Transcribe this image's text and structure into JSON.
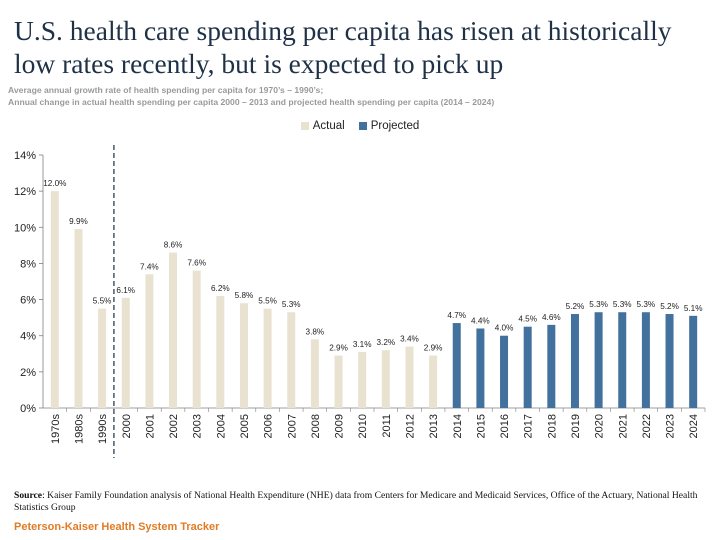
{
  "title": "U.S. health care spending per capita has risen at historically low rates recently, but is expected to pick up",
  "subtitle_line1": "Average annual growth rate of health spending per capita for 1970’s – 1990’s;",
  "subtitle_line2": "Annual change in actual health spending per capita 2000 – 2013 and projected health spending per capita (2014 – 2024)",
  "legend": {
    "actual": "Actual",
    "projected": "Projected"
  },
  "source": {
    "label": "Source",
    "text": ": Kaiser Family Foundation analysis of National Health Expenditure (NHE) data from Centers for Medicare and Medicaid Services, Office of the Actuary, National Health Statistics Group"
  },
  "brand": "Peterson-Kaiser Health System Tracker",
  "colors": {
    "actual": "#e9e2d0",
    "projected": "#41719c",
    "divider": "#1f3147",
    "title": "#1f3147",
    "brand": "#e07b26"
  },
  "chart_data": {
    "type": "bar",
    "categories": [
      "1970s",
      "1980s",
      "1990s",
      "2000",
      "2001",
      "2002",
      "2003",
      "2004",
      "2005",
      "2006",
      "2007",
      "2008",
      "2009",
      "2010",
      "2011",
      "2012",
      "2013",
      "2014",
      "2015",
      "2016",
      "2017",
      "2018",
      "2019",
      "2020",
      "2021",
      "2022",
      "2023",
      "2024"
    ],
    "series": [
      {
        "name": "Actual",
        "values": [
          12.0,
          9.9,
          5.5,
          6.1,
          7.4,
          8.6,
          7.6,
          6.2,
          5.8,
          5.5,
          5.3,
          3.8,
          2.9,
          3.1,
          3.2,
          3.4,
          2.9,
          null,
          null,
          null,
          null,
          null,
          null,
          null,
          null,
          null,
          null,
          null
        ]
      },
      {
        "name": "Projected",
        "values": [
          null,
          null,
          null,
          null,
          null,
          null,
          null,
          null,
          null,
          null,
          null,
          null,
          null,
          null,
          null,
          null,
          null,
          4.7,
          4.4,
          4.0,
          4.5,
          4.6,
          5.2,
          5.3,
          5.3,
          5.3,
          5.2,
          5.1
        ]
      }
    ],
    "data_labels": [
      "12.0%",
      "9.9%",
      "5.5%",
      "6.1%",
      "7.4%",
      "8.6%",
      "7.6%",
      "6.2%",
      "5.8%",
      "5.5%",
      "5.3%",
      "3.8%",
      "2.9%",
      "3.1%",
      "3.2%",
      "3.4%",
      "2.9%",
      "4.7%",
      "4.4%",
      "4.0%",
      "4.5%",
      "4.6%",
      "5.2%",
      "5.3%",
      "5.3%",
      "5.3%",
      "5.2%",
      "5.1%"
    ],
    "y_ticks": [
      "0%",
      "2%",
      "4%",
      "6%",
      "8%",
      "10%",
      "12%",
      "14%"
    ],
    "ylim": [
      0,
      14
    ],
    "divider_after": "1990s",
    "grid": false,
    "legend_position": "top-center"
  }
}
